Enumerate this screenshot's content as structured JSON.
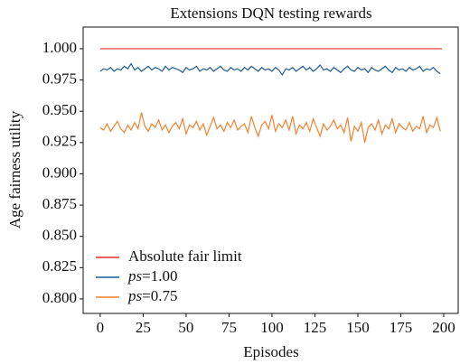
{
  "chart_data": {
    "type": "line",
    "title": "Extensions DQN testing rewards",
    "xlabel": "Episodes",
    "ylabel": "Age fairness utility",
    "xlim": [
      -9.95,
      208.95
    ],
    "xticks": [
      0,
      25,
      50,
      75,
      100,
      125,
      150,
      175,
      200
    ],
    "ylim": [
      0.7884,
      1.0173
    ],
    "yticks": [
      {
        "value": 0.8,
        "label": "0.800"
      },
      {
        "value": 0.825,
        "label": "0.825"
      },
      {
        "value": 0.85,
        "label": "0.850"
      },
      {
        "value": 0.875,
        "label": "0.875"
      },
      {
        "value": 0.9,
        "label": "0.900"
      },
      {
        "value": 0.925,
        "label": "0.925"
      },
      {
        "value": 0.95,
        "label": "0.950"
      },
      {
        "value": 0.975,
        "label": "0.975"
      },
      {
        "value": 1.0,
        "label": "1.000"
      }
    ],
    "legend": "lower left",
    "series": [
      {
        "name": "Absolute fair limit",
        "color": "#e0322d",
        "x": [
          0,
          199
        ],
        "values": [
          1.0,
          1.0
        ]
      },
      {
        "name": "ps=1.00",
        "color": "#1f5c99",
        "x": [
          0,
          2,
          4,
          6,
          8,
          10,
          12,
          14,
          16,
          18,
          20,
          22,
          24,
          26,
          28,
          30,
          32,
          34,
          36,
          38,
          40,
          42,
          44,
          46,
          48,
          50,
          52,
          54,
          56,
          58,
          60,
          62,
          64,
          66,
          68,
          70,
          72,
          74,
          76,
          78,
          80,
          82,
          84,
          86,
          88,
          90,
          92,
          94,
          96,
          98,
          100,
          102,
          104,
          106,
          108,
          110,
          112,
          114,
          116,
          118,
          120,
          122,
          124,
          126,
          128,
          130,
          132,
          134,
          136,
          138,
          140,
          142,
          144,
          146,
          148,
          150,
          152,
          154,
          156,
          158,
          160,
          162,
          164,
          166,
          168,
          170,
          172,
          174,
          176,
          178,
          180,
          182,
          184,
          186,
          188,
          190,
          192,
          194,
          196,
          198
        ],
        "values": [
          0.982,
          0.984,
          0.983,
          0.985,
          0.982,
          0.984,
          0.983,
          0.986,
          0.984,
          0.988,
          0.983,
          0.985,
          0.982,
          0.984,
          0.986,
          0.983,
          0.985,
          0.984,
          0.982,
          0.986,
          0.983,
          0.985,
          0.984,
          0.983,
          0.981,
          0.985,
          0.983,
          0.984,
          0.986,
          0.982,
          0.984,
          0.983,
          0.985,
          0.982,
          0.984,
          0.986,
          0.983,
          0.982,
          0.985,
          0.983,
          0.984,
          0.982,
          0.985,
          0.983,
          0.986,
          0.984,
          0.982,
          0.985,
          0.983,
          0.984,
          0.982,
          0.985,
          0.983,
          0.979,
          0.984,
          0.983,
          0.985,
          0.982,
          0.984,
          0.986,
          0.983,
          0.985,
          0.982,
          0.984,
          0.987,
          0.983,
          0.984,
          0.982,
          0.985,
          0.983,
          0.981,
          0.984,
          0.986,
          0.983,
          0.982,
          0.985,
          0.983,
          0.984,
          0.981,
          0.985,
          0.983,
          0.982,
          0.984,
          0.986,
          0.983,
          0.981,
          0.985,
          0.983,
          0.984,
          0.982,
          0.985,
          0.983,
          0.984,
          0.986,
          0.982,
          0.984,
          0.983,
          0.985,
          0.982,
          0.98
        ]
      },
      {
        "name": "ps=0.75",
        "color": "#f4812f",
        "x": [
          0,
          2,
          4,
          6,
          8,
          10,
          12,
          14,
          16,
          18,
          20,
          22,
          24,
          26,
          28,
          30,
          32,
          34,
          36,
          38,
          40,
          42,
          44,
          46,
          48,
          50,
          52,
          54,
          56,
          58,
          60,
          62,
          64,
          66,
          68,
          70,
          72,
          74,
          76,
          78,
          80,
          82,
          84,
          86,
          88,
          90,
          92,
          94,
          96,
          98,
          100,
          102,
          104,
          106,
          108,
          110,
          112,
          114,
          116,
          118,
          120,
          122,
          124,
          126,
          128,
          130,
          132,
          134,
          136,
          138,
          140,
          142,
          144,
          146,
          148,
          150,
          152,
          154,
          156,
          158,
          160,
          162,
          164,
          166,
          168,
          170,
          172,
          174,
          176,
          178,
          180,
          182,
          184,
          186,
          188,
          190,
          192,
          194,
          196,
          198
        ],
        "values": [
          0.937,
          0.935,
          0.94,
          0.934,
          0.938,
          0.942,
          0.936,
          0.933,
          0.939,
          0.935,
          0.941,
          0.936,
          0.949,
          0.938,
          0.934,
          0.94,
          0.937,
          0.943,
          0.935,
          0.939,
          0.933,
          0.938,
          0.941,
          0.936,
          0.944,
          0.932,
          0.939,
          0.937,
          0.942,
          0.935,
          0.94,
          0.931,
          0.938,
          0.945,
          0.936,
          0.939,
          0.934,
          0.941,
          0.937,
          0.943,
          0.935,
          0.938,
          0.94,
          0.933,
          0.946,
          0.937,
          0.93,
          0.939,
          0.942,
          0.936,
          0.947,
          0.934,
          0.94,
          0.937,
          0.943,
          0.935,
          0.946,
          0.932,
          0.939,
          0.936,
          0.941,
          0.934,
          0.944,
          0.937,
          0.93,
          0.94,
          0.935,
          0.938,
          0.943,
          0.936,
          0.939,
          0.933,
          0.945,
          0.926,
          0.938,
          0.934,
          0.941,
          0.925,
          0.937,
          0.94,
          0.935,
          0.943,
          0.932,
          0.939,
          0.936,
          0.944,
          0.933,
          0.94,
          0.937,
          0.935,
          0.941,
          0.934,
          0.938,
          0.936,
          0.946,
          0.933,
          0.939,
          0.937,
          0.945,
          0.934
        ]
      }
    ]
  }
}
